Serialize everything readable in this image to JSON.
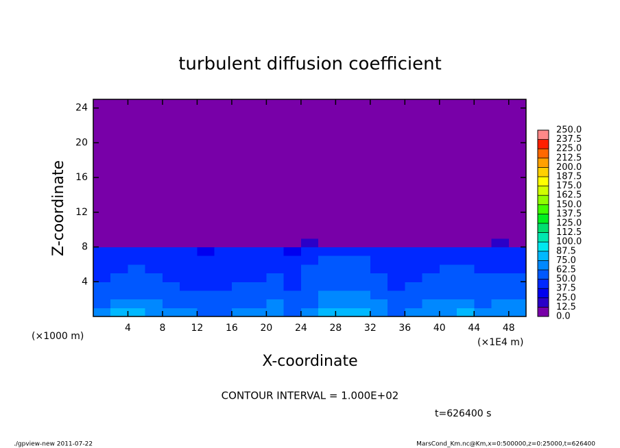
{
  "chart_data": {
    "type": "contour",
    "title": "turbulent diffusion coefficient",
    "x_label": "X-coordinate",
    "y_label": "Z-coordinate",
    "x_unit": "(×1E4 m)",
    "y_unit": "(×1000 m)",
    "contour_note": "CONTOUR INTERVAL = 1.000E+02",
    "time_note": "t=626400 s",
    "footer_left": "./gpview-new  2011-07-22",
    "footer_right": "MarsCond_Km.nc@Km,x=0:500000,z=0:25000,t=626400",
    "xlim": [
      0,
      50
    ],
    "ylim": [
      0,
      25
    ],
    "xticks": [
      4,
      8,
      12,
      16,
      20,
      24,
      28,
      32,
      36,
      40,
      44,
      48
    ],
    "yticks": [
      4,
      8,
      12,
      16,
      20,
      24
    ],
    "x_edges": [
      0,
      2,
      4,
      6,
      8,
      10,
      12,
      14,
      16,
      18,
      20,
      22,
      24,
      26,
      28,
      30,
      32,
      34,
      36,
      38,
      40,
      42,
      44,
      46,
      48,
      50
    ],
    "z_edges": [
      0,
      1,
      2,
      3,
      4,
      5,
      6,
      7,
      8,
      9,
      25
    ],
    "values": [
      [
        70,
        75,
        80,
        72,
        68,
        65,
        60,
        62,
        66,
        70,
        72,
        60,
        68,
        75,
        80,
        78,
        72,
        60,
        65,
        70,
        72,
        75,
        70,
        72,
        74
      ],
      [
        60,
        65,
        70,
        65,
        60,
        58,
        55,
        58,
        60,
        62,
        65,
        55,
        62,
        70,
        72,
        70,
        65,
        55,
        60,
        65,
        66,
        68,
        62,
        65,
        66
      ],
      [
        55,
        58,
        62,
        60,
        55,
        52,
        50,
        52,
        55,
        58,
        60,
        50,
        58,
        65,
        66,
        64,
        60,
        52,
        55,
        60,
        60,
        62,
        58,
        60,
        60
      ],
      [
        52,
        55,
        58,
        55,
        50,
        48,
        45,
        48,
        50,
        52,
        55,
        45,
        55,
        60,
        62,
        60,
        55,
        48,
        50,
        55,
        55,
        58,
        52,
        55,
        55
      ],
      [
        48,
        50,
        55,
        50,
        46,
        45,
        42,
        44,
        46,
        48,
        50,
        42,
        52,
        58,
        58,
        56,
        52,
        45,
        48,
        50,
        52,
        55,
        50,
        50,
        50
      ],
      [
        45,
        48,
        50,
        48,
        44,
        42,
        40,
        42,
        44,
        45,
        46,
        40,
        50,
        55,
        55,
        52,
        48,
        42,
        45,
        48,
        50,
        52,
        48,
        48,
        48
      ],
      [
        42,
        45,
        48,
        45,
        42,
        40,
        38,
        40,
        42,
        42,
        44,
        38,
        46,
        52,
        52,
        50,
        45,
        40,
        42,
        45,
        46,
        48,
        45,
        45,
        45
      ],
      [
        40,
        42,
        45,
        42,
        40,
        38,
        35,
        38,
        40,
        40,
        42,
        36,
        44,
        48,
        48,
        46,
        42,
        38,
        40,
        42,
        44,
        45,
        42,
        42,
        42
      ],
      [
        5,
        5,
        10,
        5,
        5,
        5,
        5,
        5,
        5,
        5,
        10,
        8,
        15,
        10,
        10,
        8,
        5,
        5,
        5,
        8,
        10,
        8,
        10,
        15,
        5
      ],
      [
        0,
        0,
        0,
        0,
        0,
        0,
        0,
        0,
        0,
        0,
        0,
        0,
        0,
        0,
        0,
        0,
        0,
        0,
        0,
        0,
        0,
        0,
        0,
        0,
        0
      ]
    ],
    "levels": [
      {
        "value": 0,
        "label": "0.0"
      },
      12.5,
      {
        "value": 25,
        "label": "25.0"
      },
      37.5,
      {
        "value": 50,
        "label": "50.0"
      },
      62.5,
      {
        "value": 75,
        "label": "75.0"
      },
      87.5,
      {
        "value": 100,
        "label": "100.0"
      },
      112.5,
      {
        "value": 125,
        "label": "125.0"
      },
      137.5,
      {
        "value": 150,
        "label": "150.0"
      },
      162.5,
      {
        "value": 175,
        "label": "175.0"
      },
      187.5,
      {
        "value": 200,
        "label": "200.0"
      },
      212.5,
      {
        "value": 225,
        "label": "225.0"
      },
      237.5,
      {
        "value": 250,
        "label": "250.0"
      }
    ],
    "colors": [
      "#7800a8",
      "#2a00c8",
      "#0000f0",
      "#0028ff",
      "#0058ff",
      "#0088ff",
      "#00b8ff",
      "#00e8f0",
      "#00e8b0",
      "#00e070",
      "#00f020",
      "#40ff00",
      "#90ff00",
      "#d0ff00",
      "#ffff00",
      "#ffd000",
      "#ffa000",
      "#ff6800",
      "#ff2000",
      "#ff8888"
    ]
  }
}
